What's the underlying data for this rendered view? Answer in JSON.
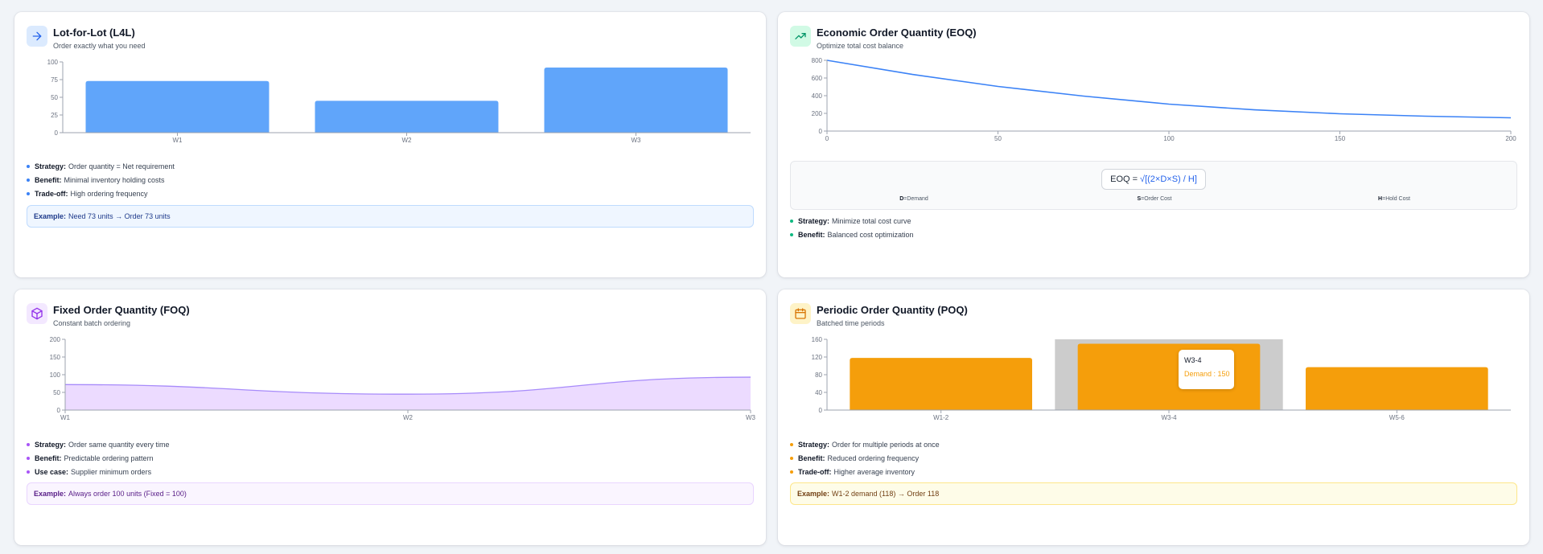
{
  "colors": {
    "blue": "#60a5fa",
    "line_blue": "#3b82f6",
    "purple": "#a78bfa",
    "purple_fill": "#e9d5ff",
    "orange": "#f59e0b",
    "cursor_gray": "#cccccc"
  },
  "cards": {
    "l4l": {
      "icon": "arrow-right-icon",
      "title": "Lot-for-Lot (L4L)",
      "subtitle": "Order exactly what you need",
      "bullets": [
        {
          "label": "Strategy:",
          "text": "Order quantity = Net requirement"
        },
        {
          "label": "Benefit:",
          "text": "Minimal inventory holding costs"
        },
        {
          "label": "Trade-off:",
          "text": "High ordering frequency"
        }
      ],
      "example": {
        "label": "Example:",
        "text": "Need 73 units → Order 73 units"
      }
    },
    "eoq": {
      "icon": "trending-up-icon",
      "title": "Economic Order Quantity (EOQ)",
      "subtitle": "Optimize total cost balance",
      "formula": {
        "lhs": "EOQ =",
        "rhs": "√[(2×D×S) / H]"
      },
      "legend": [
        {
          "key": "D",
          "text": "=Demand"
        },
        {
          "key": "S",
          "text": "=Order Cost"
        },
        {
          "key": "H",
          "text": "=Hold Cost"
        }
      ],
      "bullets": [
        {
          "label": "Strategy:",
          "text": "Minimize total cost curve"
        },
        {
          "label": "Benefit:",
          "text": "Balanced cost optimization"
        }
      ]
    },
    "foq": {
      "icon": "package-icon",
      "title": "Fixed Order Quantity (FOQ)",
      "subtitle": "Constant batch ordering",
      "bullets": [
        {
          "label": "Strategy:",
          "text": "Order same quantity every time"
        },
        {
          "label": "Benefit:",
          "text": "Predictable ordering pattern"
        },
        {
          "label": "Use case:",
          "text": "Supplier minimum orders"
        }
      ],
      "example": {
        "label": "Example:",
        "text": "Always order 100 units (Fixed = 100)"
      }
    },
    "poq": {
      "icon": "calendar-icon",
      "title": "Periodic Order Quantity (POQ)",
      "subtitle": "Batched time periods",
      "tooltip": {
        "label": "W3-4",
        "value": "Demand : 150"
      },
      "bullets": [
        {
          "label": "Strategy:",
          "text": "Order for multiple periods at once"
        },
        {
          "label": "Benefit:",
          "text": "Reduced ordering frequency"
        },
        {
          "label": "Trade-off:",
          "text": "Higher average inventory"
        }
      ],
      "example": {
        "label": "Example:",
        "text": "W1-2 demand (118) → Order 118"
      }
    }
  },
  "chart_data": [
    {
      "id": "l4l",
      "type": "bar",
      "categories": [
        "W1",
        "W2",
        "W3"
      ],
      "values": [
        73,
        45,
        92
      ],
      "ylim": [
        0,
        100
      ],
      "yticks": [
        0,
        25,
        50,
        75,
        100
      ],
      "grid": false
    },
    {
      "id": "eoq",
      "type": "line",
      "x": [
        0,
        25,
        50,
        75,
        100,
        125,
        150,
        175,
        200
      ],
      "y": [
        800,
        640,
        505,
        395,
        305,
        240,
        195,
        168,
        150
      ],
      "xticks": [
        0,
        50,
        100,
        150,
        200
      ],
      "ylim": [
        0,
        800
      ],
      "yticks": [
        0,
        200,
        400,
        600,
        800
      ],
      "grid": false
    },
    {
      "id": "foq",
      "type": "area",
      "categories": [
        "W1",
        "W2",
        "W3"
      ],
      "values": [
        72,
        45,
        93
      ],
      "ylim": [
        0,
        200
      ],
      "yticks": [
        0,
        50,
        100,
        150,
        200
      ],
      "grid": false
    },
    {
      "id": "poq",
      "type": "bar",
      "categories": [
        "W1-2",
        "W3-4",
        "W5-6"
      ],
      "values": [
        118,
        150,
        97
      ],
      "ylim": [
        0,
        160
      ],
      "yticks": [
        0,
        40,
        80,
        120,
        160
      ],
      "active_category": "W3-4",
      "grid": false
    }
  ]
}
